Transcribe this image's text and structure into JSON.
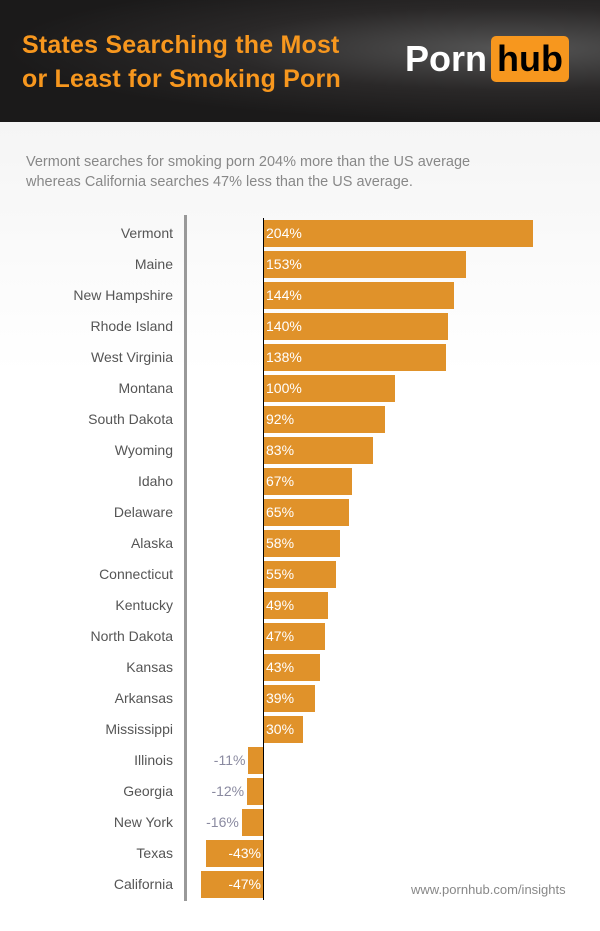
{
  "header": {
    "title_line1": "States Searching the Most",
    "title_line2": "or Least for Smoking Porn",
    "logo_left": "Porn",
    "logo_right": "hub"
  },
  "subtitle_line1": "Vermont searches for smoking porn 204% more than the US average",
  "subtitle_line2": "whereas California searches 47% less than the US average.",
  "source": "www.pornhub.com/insights",
  "colors": {
    "bar": "#e0922a",
    "title": "#f7971e",
    "header_bg": "#1b1a1a"
  },
  "chart_data": {
    "type": "bar",
    "orientation": "horizontal",
    "categories": [
      "Vermont",
      "Maine",
      "New Hampshire",
      "Rhode Island",
      "West Virginia",
      "Montana",
      "South Dakota",
      "Wyoming",
      "Idaho",
      "Delaware",
      "Alaska",
      "Connecticut",
      "Kentucky",
      "North Dakota",
      "Kansas",
      "Arkansas",
      "Mississippi",
      "Illinois",
      "Georgia",
      "New York",
      "Texas",
      "California"
    ],
    "values": [
      204,
      153,
      144,
      140,
      138,
      100,
      92,
      83,
      67,
      65,
      58,
      55,
      49,
      47,
      43,
      39,
      30,
      -11,
      -12,
      -16,
      -43,
      -47
    ],
    "labels": [
      "204%",
      "153%",
      "144%",
      "140%",
      "138%",
      "100%",
      "92%",
      "83%",
      "67%",
      "65%",
      "58%",
      "55%",
      "49%",
      "47%",
      "43%",
      "39%",
      "30%",
      "-11%",
      "-12%",
      "-16%",
      "-43%",
      "-47%"
    ],
    "unit": "%",
    "grid": false
  }
}
